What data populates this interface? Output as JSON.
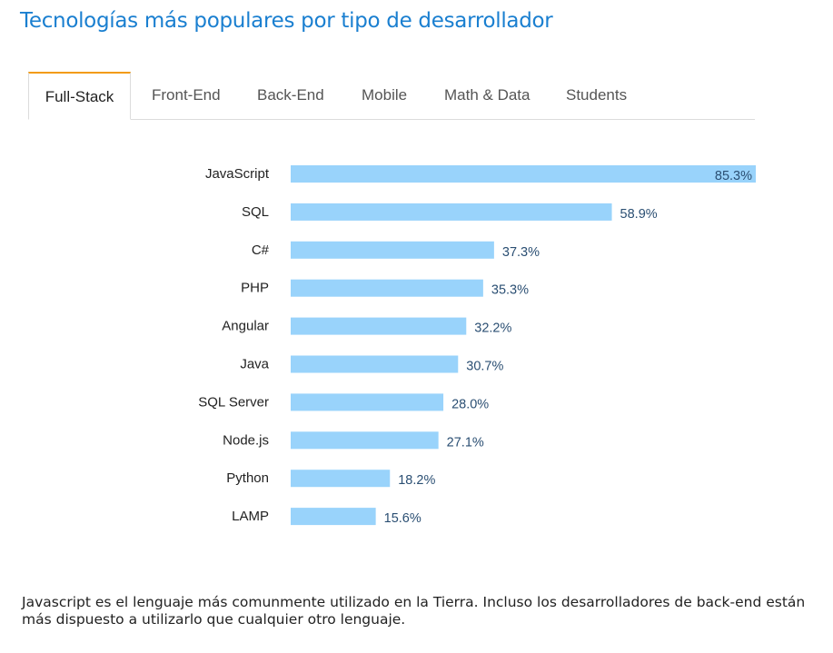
{
  "page": {
    "title": "Tecnologías más populares por tipo de desarrollador",
    "caption": "Javascript es el lenguaje más comunmente utilizado en la Tierra. Incluso los desarrolladores de back-end están más dispuesto a utilizarlo que cualquier otro lenguaje."
  },
  "tabs": [
    {
      "label": "Full-Stack",
      "active": true
    },
    {
      "label": "Front-End",
      "active": false
    },
    {
      "label": "Back-End",
      "active": false
    },
    {
      "label": "Mobile",
      "active": false
    },
    {
      "label": "Math & Data",
      "active": false
    },
    {
      "label": "Students",
      "active": false
    }
  ],
  "colors": {
    "title": "#1a7fd0",
    "bar": "#99d3fb",
    "value_label": "#2b4f73",
    "tab_accent": "#f29b11"
  },
  "chart_data": {
    "type": "bar",
    "orientation": "horizontal",
    "categories": [
      "JavaScript",
      "SQL",
      "C#",
      "PHP",
      "Angular",
      "Java",
      "SQL Server",
      "Node.js",
      "Python",
      "LAMP"
    ],
    "values": [
      85.3,
      58.9,
      37.3,
      35.3,
      32.2,
      30.7,
      28.0,
      27.1,
      18.2,
      15.6
    ],
    "value_labels": [
      "85.3%",
      "58.9%",
      "37.3%",
      "35.3%",
      "32.2%",
      "30.7%",
      "28.0%",
      "27.1%",
      "18.2%",
      "15.6%"
    ],
    "unit": "%",
    "xlim": [
      0,
      85.3
    ],
    "grid": false,
    "legend": "none"
  }
}
